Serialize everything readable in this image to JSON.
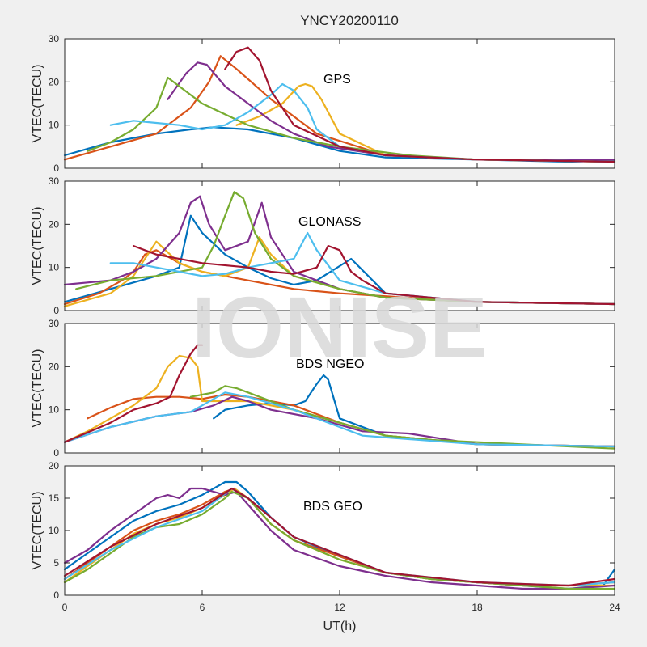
{
  "chart_data": {
    "type": "line",
    "title": "YNCY20200110",
    "watermark": "IONISE",
    "xlabel": "UT(h)",
    "xlim": [
      0,
      24
    ],
    "xticks": [
      "0",
      "6",
      "12",
      "18",
      "24"
    ],
    "colors": [
      "#0072BD",
      "#D95319",
      "#EDB120",
      "#7E2F8E",
      "#77AC30",
      "#4DBEEE",
      "#A2142F"
    ],
    "panels": [
      {
        "label": "GPS",
        "ylabel": "VTEC(TECU)",
        "ylim": [
          0,
          30
        ],
        "yticks": [
          "0",
          "10",
          "20",
          "30"
        ],
        "series": [
          {
            "x": [
              0,
              2,
              4,
              5.5,
              6.5,
              8,
              10,
              12,
              14,
              18,
              22,
              24
            ],
            "y": [
              3,
              6,
              8,
              9,
              9.5,
              9,
              7,
              4,
              2.5,
              2,
              1.5,
              1.8
            ]
          },
          {
            "x": [
              0,
              2,
              4,
              5.5,
              6.3,
              6.8,
              7.5,
              9,
              11,
              14,
              18,
              24
            ],
            "y": [
              2,
              5,
              8,
              14,
              20,
              26,
              23,
              16,
              8,
              3,
              2,
              1.5
            ]
          },
          {
            "x": [
              7.5,
              8.5,
              9.5,
              10.2,
              10.5,
              10.8,
              11.2,
              12,
              14,
              18,
              24
            ],
            "y": [
              10,
              12,
              15,
              19,
              19.5,
              19,
              16,
              8,
              3,
              2,
              1.5
            ]
          },
          {
            "x": [
              4.5,
              5.3,
              5.8,
              6.2,
              7,
              8,
              9,
              10,
              11.5,
              14,
              18,
              24
            ],
            "y": [
              16,
              22,
              24.5,
              24,
              19,
              15,
              11,
              8,
              5,
              3,
              2,
              2
            ]
          },
          {
            "x": [
              1,
              2,
              3,
              4,
              4.5,
              5,
              6,
              8,
              10,
              12,
              15,
              18,
              24
            ],
            "y": [
              4,
              6,
              9,
              14,
              21,
              19,
              15,
              10,
              7,
              5,
              3,
              2,
              1.5
            ]
          },
          {
            "x": [
              2,
              3,
              4,
              5,
              6,
              7,
              8,
              9,
              9.5,
              10,
              10.6,
              11,
              12,
              14,
              18,
              24
            ],
            "y": [
              10,
              11,
              10.5,
              10,
              9,
              10,
              13,
              17,
              19.5,
              18,
              14,
              9,
              5,
              3,
              2,
              1.5
            ]
          },
          {
            "x": [
              7,
              7.5,
              8,
              8.5,
              9,
              10,
              12,
              14,
              18,
              24
            ],
            "y": [
              23,
              27,
              28,
              25,
              18,
              10,
              5,
              3,
              2,
              1.5
            ]
          }
        ]
      },
      {
        "label": "GLONASS",
        "ylabel": "VTEC(TECU)",
        "ylim": [
          0,
          30
        ],
        "yticks": [
          "0",
          "10",
          "20",
          "30"
        ],
        "series": [
          {
            "x": [
              0,
              2,
              4,
              5,
              5.5,
              6,
              7,
              8,
              9,
              10,
              11,
              12.5,
              14,
              18,
              24
            ],
            "y": [
              2,
              5,
              8,
              10,
              22,
              18,
              13,
              10,
              7.5,
              6,
              7,
              12,
              4,
              2,
              1.5
            ]
          },
          {
            "x": [
              0,
              1.5,
              2.5,
              3,
              3.5,
              4,
              5,
              6,
              8,
              10,
              12,
              15,
              18,
              24
            ],
            "y": [
              1.5,
              4,
              7,
              9,
              13,
              14,
              11,
              9,
              7,
              5,
              4,
              3,
              2,
              1.5
            ]
          },
          {
            "x": [
              0,
              2,
              3,
              3.5,
              4,
              5,
              6,
              7,
              8,
              8.5,
              9,
              10,
              12,
              14,
              18,
              24
            ],
            "y": [
              1,
              4,
              8,
              12,
              16,
              11,
              9,
              8,
              10,
              17,
              13,
              8,
              5,
              3,
              2,
              1.5
            ]
          },
          {
            "x": [
              0,
              1,
              2,
              3,
              4,
              5,
              5.5,
              5.9,
              6.3,
              7,
              8,
              8.6,
              9,
              10,
              12,
              14,
              18,
              24
            ],
            "y": [
              6,
              6.5,
              7,
              9,
              12,
              18,
              25,
              26.5,
              20,
              14,
              16,
              25,
              17,
              9,
              5,
              3,
              2,
              1.5
            ]
          },
          {
            "x": [
              0.5,
              2,
              4,
              6,
              6.5,
              7,
              7.4,
              7.8,
              8.3,
              9,
              10,
              12,
              14,
              18,
              24
            ],
            "y": [
              5,
              7,
              8,
              10,
              15,
              22,
              27.5,
              26,
              18,
              12,
              8,
              5,
              3,
              2,
              1.5
            ]
          },
          {
            "x": [
              2,
              3,
              4,
              5,
              6,
              7,
              8,
              9,
              10,
              10.6,
              11,
              12,
              14,
              18,
              24
            ],
            "y": [
              11,
              11,
              10,
              9,
              8,
              8.5,
              10,
              11,
              12,
              18,
              14,
              7,
              4,
              2,
              1.5
            ]
          },
          {
            "x": [
              3,
              4,
              6,
              8,
              9,
              10,
              11,
              11.5,
              12,
              12.5,
              13,
              14,
              18,
              24
            ],
            "y": [
              15,
              13,
              11,
              10,
              9,
              8.5,
              10,
              15,
              14,
              9,
              7,
              4,
              2,
              1.5
            ]
          }
        ]
      },
      {
        "label": "BDS NGEO",
        "ylabel": "VTEC(TECU)",
        "ylim": [
          0,
          30
        ],
        "yticks": [
          "0",
          "10",
          "20",
          "30"
        ],
        "series": [
          {
            "x": [
              6.5,
              7,
              8,
              9,
              10,
              10.5,
              11,
              11.3,
              11.5,
              12,
              14,
              16,
              18,
              24
            ],
            "y": [
              8,
              10,
              11,
              11.5,
              11,
              12,
              16,
              18,
              17,
              8,
              4,
              3,
              2,
              1.5
            ]
          },
          {
            "x": [
              1,
              2,
              3,
              4,
              5,
              6,
              7,
              8,
              10,
              12,
              14,
              18,
              24
            ],
            "y": [
              8,
              10.5,
              12.5,
              13,
              13,
              12.5,
              13.5,
              13,
              11,
              7,
              4,
              2,
              1.5
            ]
          },
          {
            "x": [
              0,
              1,
              2,
              3,
              4,
              4.5,
              5,
              5.5,
              5.8,
              6,
              8,
              10,
              12,
              14,
              18,
              24
            ],
            "y": [
              2.5,
              5,
              8,
              11,
              15,
              20,
              22.5,
              22,
              20,
              12,
              12,
              10,
              7,
              4,
              2,
              1.5
            ]
          },
          {
            "x": [
              0,
              2,
              4,
              5.5,
              6.5,
              7.3,
              8,
              9,
              11,
              13,
              15,
              18,
              24
            ],
            "y": [
              2.5,
              6,
              8.5,
              9.5,
              11,
              13,
              12,
              10,
              8,
              5,
              4.5,
              2,
              1.5
            ]
          },
          {
            "x": [
              5.5,
              6.5,
              7,
              7.5,
              8,
              9,
              10,
              12,
              14,
              16,
              18,
              24
            ],
            "y": [
              13,
              14,
              15.5,
              15,
              14,
              12,
              10,
              7,
              4,
              3,
              2.5,
              1
            ]
          },
          {
            "x": [
              0,
              2,
              4,
              5.5,
              7,
              8,
              10,
              13,
              18,
              24
            ],
            "y": [
              2.5,
              6,
              8.5,
              9.5,
              14,
              13,
              10,
              4,
              2,
              1.5
            ]
          },
          {
            "x": [
              0,
              2,
              3,
              4,
              4.6,
              5,
              5.5,
              5.8,
              6
            ],
            "y": [
              2.5,
              7,
              10,
              11.5,
              13,
              18,
              23,
              25,
              25
            ]
          }
        ]
      },
      {
        "label": "BDS GEO",
        "ylabel": "VTEC(TECU)",
        "ylim": [
          0,
          20
        ],
        "yticks": [
          "0",
          "5",
          "10",
          "15",
          "20"
        ],
        "series": [
          {
            "x": [
              0,
              1,
              2,
              3,
              4,
              5,
              6,
              7,
              7.5,
              8,
              9,
              10,
              12,
              14,
              16,
              18,
              20,
              22,
              23.5,
              24
            ],
            "y": [
              4,
              6.5,
              9,
              11.5,
              13,
              14,
              15.5,
              17.5,
              17.5,
              16,
              12,
              9,
              6,
              3.5,
              2.5,
              2,
              1.5,
              1,
              1.5,
              4
            ]
          },
          {
            "x": [
              0,
              1,
              2,
              3,
              4,
              5,
              6,
              7,
              7.4,
              8,
              9,
              10,
              12,
              14,
              16,
              18,
              20,
              22,
              24
            ],
            "y": [
              2.5,
              5,
              7.5,
              10,
              11.5,
              12.5,
              14,
              16,
              16.5,
              15,
              11,
              8.5,
              6,
              3.5,
              2.5,
              2,
              1.5,
              1.5,
              2
            ]
          },
          {
            "x": [
              0,
              1,
              2,
              3,
              4,
              5,
              6,
              7,
              7.4,
              8,
              9,
              10,
              12,
              14,
              16,
              18,
              20,
              22,
              24
            ],
            "y": [
              2,
              4.5,
              7,
              9.5,
              11,
              12,
              13.5,
              15.5,
              16.5,
              15,
              11,
              8.5,
              5.5,
              3.5,
              2.5,
              2,
              1.5,
              1.5,
              1.5
            ]
          },
          {
            "x": [
              0,
              1,
              2,
              3,
              4,
              4.5,
              5,
              5.5,
              6,
              6.5,
              7,
              7.5,
              8,
              9,
              10,
              12,
              14,
              16,
              18,
              20,
              22,
              24
            ],
            "y": [
              5,
              7,
              10,
              12.5,
              15,
              15.5,
              15,
              16.5,
              16.5,
              16,
              15.5,
              16,
              14,
              10,
              7,
              4.5,
              3,
              2,
              1.5,
              1,
              1,
              1.5
            ]
          },
          {
            "x": [
              0,
              1,
              2,
              3,
              4,
              5,
              6,
              7,
              7.3,
              8,
              9,
              10,
              12,
              14,
              16,
              18,
              20,
              22,
              24
            ],
            "y": [
              2,
              4,
              6.5,
              9,
              10.5,
              11,
              12.5,
              15,
              16,
              15,
              11,
              8.5,
              5.5,
              3.5,
              2.5,
              2,
              1.5,
              1,
              1
            ]
          },
          {
            "x": [
              0,
              2,
              4,
              6,
              7.3,
              8,
              10,
              14,
              18,
              22,
              24
            ],
            "y": [
              2.5,
              7,
              10.5,
              13,
              16.5,
              15,
              9,
              3.5,
              2,
              1.5,
              2
            ]
          },
          {
            "x": [
              0,
              2,
              4,
              6,
              7.3,
              8,
              10,
              14,
              18,
              22,
              24
            ],
            "y": [
              3,
              7.5,
              11,
              13.5,
              16.5,
              15,
              9,
              3.5,
              2,
              1.5,
              2.5
            ]
          }
        ]
      }
    ]
  }
}
